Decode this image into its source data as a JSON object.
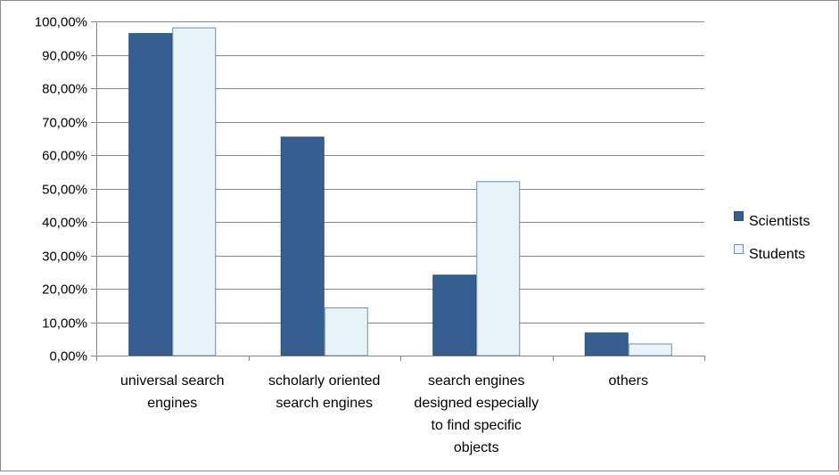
{
  "chart_data": {
    "type": "bar",
    "title": "",
    "xlabel": "",
    "ylabel": "",
    "categories": [
      [
        "universal search",
        "engines"
      ],
      [
        "scholarly oriented",
        "search engines"
      ],
      [
        "search engines",
        "designed especially",
        "to find specific",
        "objects"
      ],
      [
        "others"
      ]
    ],
    "series": [
      {
        "name": "Scientists",
        "color": "#355E91",
        "values": [
          96.5,
          65.5,
          24.2,
          6.9
        ]
      },
      {
        "name": "Students",
        "color": "#E8F4FA",
        "values": [
          98.2,
          14.4,
          52.2,
          3.6
        ]
      }
    ],
    "ylim": [
      0,
      100
    ],
    "ytick_step": 10,
    "ytick_labels": [
      "0,00%",
      "10,00%",
      "20,00%",
      "30,00%",
      "40,00%",
      "50,00%",
      "60,00%",
      "70,00%",
      "80,00%",
      "90,00%",
      "100,00%"
    ],
    "grid": true,
    "legend_position": "right",
    "bar_outline_color": "#6a8fb8",
    "dark_outline_color": "#2b4c76",
    "gridline_color": "#868686"
  }
}
